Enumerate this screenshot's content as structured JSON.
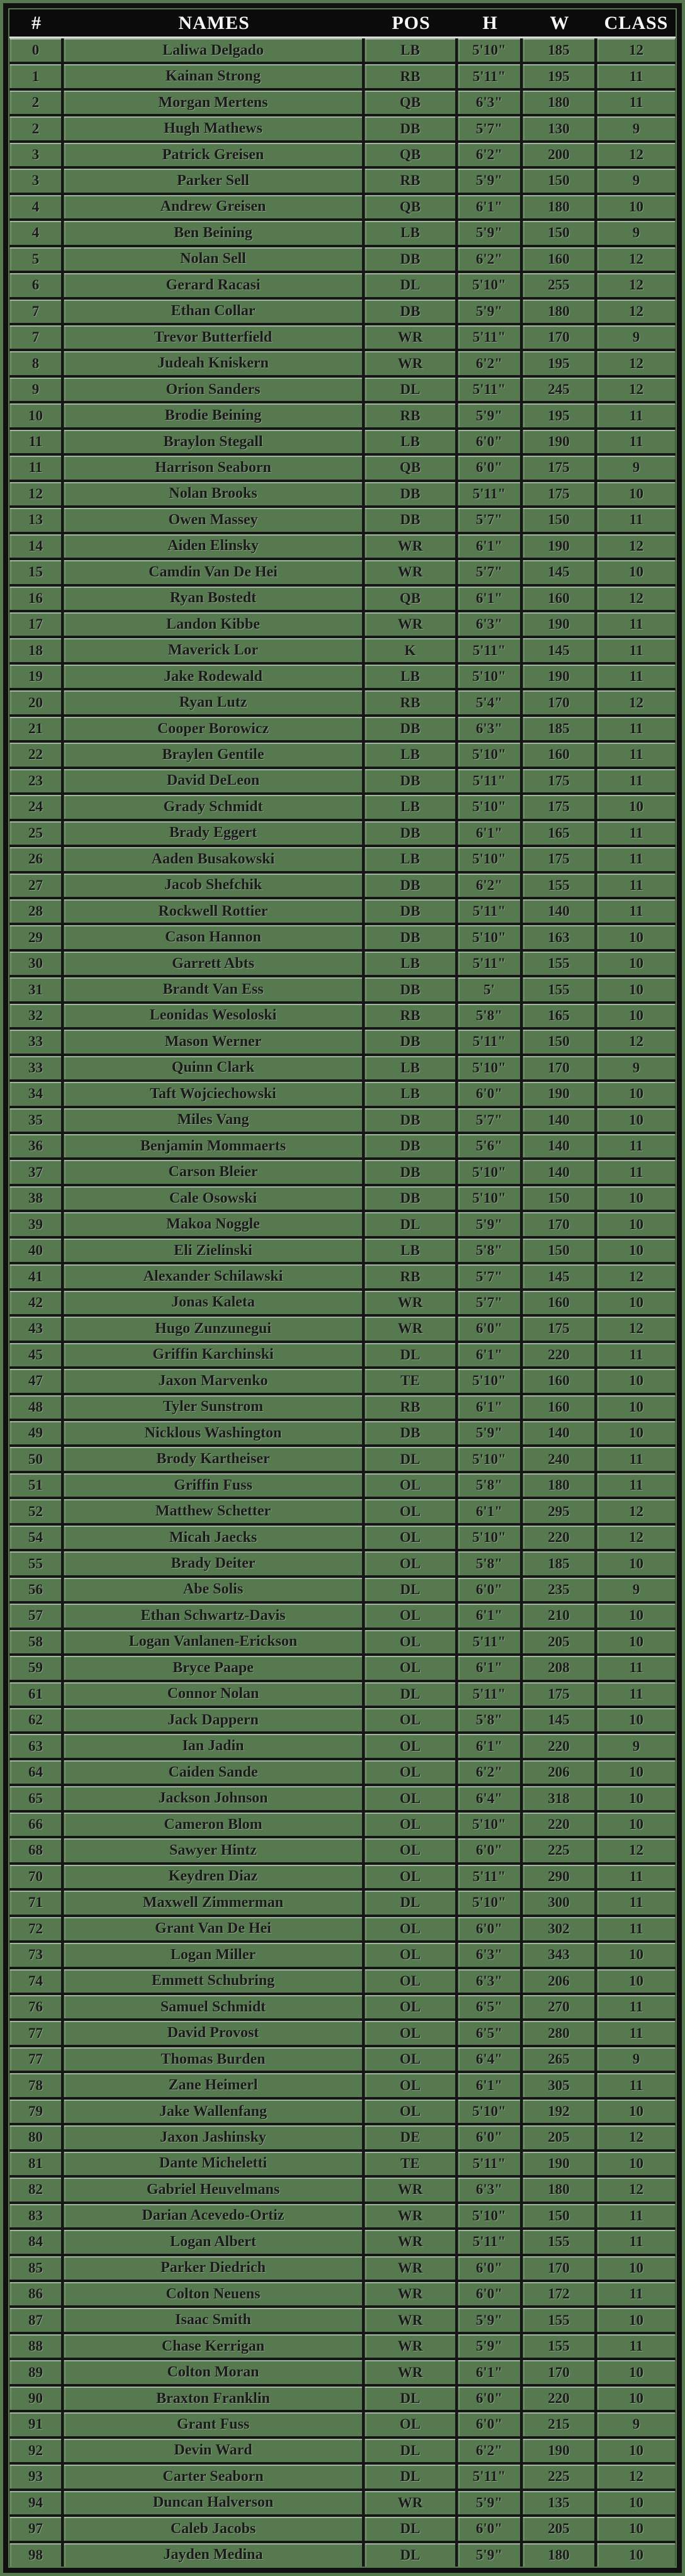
{
  "colors": {
    "background": "#57794f",
    "grid": "#161616",
    "header_bg": "#0b0b0b",
    "header_text": "#f7f7f7",
    "row_text": "#1b1b1b"
  },
  "header": {
    "columns": [
      "#",
      "NAMES",
      "POS",
      "H",
      "W",
      "CLASS"
    ]
  },
  "roster": {
    "rows": [
      [
        "0",
        "Laliwa Delgado",
        "LB",
        "5'10\"",
        "185",
        "12"
      ],
      [
        "1",
        "Kainan Strong",
        "RB",
        "5'11\"",
        "195",
        "11"
      ],
      [
        "2",
        "Morgan Mertens",
        "QB",
        "6'3\"",
        "180",
        "11"
      ],
      [
        "2",
        "Hugh Mathews",
        "DB",
        "5'7\"",
        "130",
        "9"
      ],
      [
        "3",
        "Patrick Greisen",
        "QB",
        "6'2\"",
        "200",
        "12"
      ],
      [
        "3",
        "Parker Sell",
        "RB",
        "5'9\"",
        "150",
        "9"
      ],
      [
        "4",
        "Andrew Greisen",
        "QB",
        "6'1\"",
        "180",
        "10"
      ],
      [
        "4",
        "Ben Beining",
        "LB",
        "5'9\"",
        "150",
        "9"
      ],
      [
        "5",
        "Nolan Sell",
        "DB",
        "6'2\"",
        "160",
        "12"
      ],
      [
        "6",
        "Gerard Racasi",
        "DL",
        "5'10\"",
        "255",
        "12"
      ],
      [
        "7",
        "Ethan Collar",
        "DB",
        "5'9\"",
        "180",
        "12"
      ],
      [
        "7",
        "Trevor Butterfield",
        "WR",
        "5'11\"",
        "170",
        "9"
      ],
      [
        "8",
        "Judeah Kniskern",
        "WR",
        "6'2\"",
        "195",
        "12"
      ],
      [
        "9",
        "Orion Sanders",
        "DL",
        "5'11\"",
        "245",
        "12"
      ],
      [
        "10",
        "Brodie Beining",
        "RB",
        "5'9\"",
        "195",
        "11"
      ],
      [
        "11",
        "Braylon Stegall",
        "LB",
        "6'0\"",
        "190",
        "11"
      ],
      [
        "11",
        "Harrison Seaborn",
        "QB",
        "6'0\"",
        "175",
        "9"
      ],
      [
        "12",
        "Nolan Brooks",
        "DB",
        "5'11\"",
        "175",
        "10"
      ],
      [
        "13",
        "Owen Massey",
        "DB",
        "5'7\"",
        "150",
        "11"
      ],
      [
        "14",
        "Aiden Elinsky",
        "WR",
        "6'1\"",
        "190",
        "12"
      ],
      [
        "15",
        "Camdin Van De Hei",
        "WR",
        "5'7\"",
        "145",
        "10"
      ],
      [
        "16",
        "Ryan Bostedt",
        "QB",
        "6'1\"",
        "160",
        "12"
      ],
      [
        "17",
        "Landon Kibbe",
        "WR",
        "6'3\"",
        "190",
        "11"
      ],
      [
        "18",
        "Maverick Lor",
        "K",
        "5'11\"",
        "145",
        "11"
      ],
      [
        "19",
        "Jake Rodewald",
        "LB",
        "5'10\"",
        "190",
        "11"
      ],
      [
        "20",
        "Ryan Lutz",
        "RB",
        "5'4\"",
        "170",
        "12"
      ],
      [
        "21",
        "Cooper Borowicz",
        "DB",
        "6'3\"",
        "185",
        "11"
      ],
      [
        "22",
        "Braylen Gentile",
        "LB",
        "5'10\"",
        "160",
        "11"
      ],
      [
        "23",
        "David DeLeon",
        "DB",
        "5'11\"",
        "175",
        "11"
      ],
      [
        "24",
        "Grady Schmidt",
        "LB",
        "5'10\"",
        "175",
        "10"
      ],
      [
        "25",
        "Brady Eggert",
        "DB",
        "6'1\"",
        "165",
        "11"
      ],
      [
        "26",
        "Aaden Busakowski",
        "LB",
        "5'10\"",
        "175",
        "11"
      ],
      [
        "27",
        "Jacob Shefchik",
        "DB",
        "6'2\"",
        "155",
        "11"
      ],
      [
        "28",
        "Rockwell Rottier",
        "DB",
        "5'11\"",
        "140",
        "11"
      ],
      [
        "29",
        "Cason Hannon",
        "DB",
        "5'10\"",
        "163",
        "10"
      ],
      [
        "30",
        "Garrett Abts",
        "LB",
        "5'11\"",
        "155",
        "10"
      ],
      [
        "31",
        "Brandt Van Ess",
        "DB",
        "5'",
        "155",
        "10"
      ],
      [
        "32",
        "Leonidas Wesoloski",
        "RB",
        "5'8\"",
        "165",
        "10"
      ],
      [
        "33",
        "Mason Werner",
        "DB",
        "5'11\"",
        "150",
        "12"
      ],
      [
        "33",
        "Quinn Clark",
        "LB",
        "5'10\"",
        "170",
        "9"
      ],
      [
        "34",
        "Taft Wojciechowski",
        "LB",
        "6'0\"",
        "190",
        "10"
      ],
      [
        "35",
        "Miles Vang",
        "DB",
        "5'7\"",
        "140",
        "10"
      ],
      [
        "36",
        "Benjamin Mommaerts",
        "DB",
        "5'6\"",
        "140",
        "11"
      ],
      [
        "37",
        "Carson Bleier",
        "DB",
        "5'10\"",
        "140",
        "11"
      ],
      [
        "38",
        "Cale Osowski",
        "DB",
        "5'10\"",
        "150",
        "10"
      ],
      [
        "39",
        "Makoa Noggle",
        "DL",
        "5'9\"",
        "170",
        "10"
      ],
      [
        "40",
        "Eli Zielinski",
        "LB",
        "5'8\"",
        "150",
        "10"
      ],
      [
        "41",
        "Alexander Schilawski",
        "RB",
        "5'7\"",
        "145",
        "12"
      ],
      [
        "42",
        "Jonas Kaleta",
        "WR",
        "5'7\"",
        "160",
        "10"
      ],
      [
        "43",
        "Hugo Zunzunegui",
        "WR",
        "6'0\"",
        "175",
        "12"
      ],
      [
        "45",
        "Griffin Karchinski",
        "DL",
        "6'1\"",
        "220",
        "11"
      ],
      [
        "47",
        "Jaxon Marvenko",
        "TE",
        "5'10\"",
        "160",
        "10"
      ],
      [
        "48",
        "Tyler Sunstrom",
        "RB",
        "6'1\"",
        "160",
        "10"
      ],
      [
        "49",
        "Nicklous Washington",
        "DB",
        "5'9\"",
        "140",
        "10"
      ],
      [
        "50",
        "Brody Kartheiser",
        "DL",
        "5'10\"",
        "240",
        "11"
      ],
      [
        "51",
        "Griffin Fuss",
        "OL",
        "5'8\"",
        "180",
        "11"
      ],
      [
        "52",
        "Matthew Schetter",
        "OL",
        "6'1\"",
        "295",
        "12"
      ],
      [
        "54",
        "Micah Jaecks",
        "OL",
        "5'10\"",
        "220",
        "12"
      ],
      [
        "55",
        "Brady Deiter",
        "OL",
        "5'8\"",
        "185",
        "10"
      ],
      [
        "56",
        "Abe Solis",
        "DL",
        "6'0\"",
        "235",
        "9"
      ],
      [
        "57",
        "Ethan Schwartz-Davis",
        "OL",
        "6'1\"",
        "210",
        "10"
      ],
      [
        "58",
        "Logan Vanlanen-Erickson",
        "OL",
        "5'11\"",
        "205",
        "10"
      ],
      [
        "59",
        "Bryce Paape",
        "OL",
        "6'1\"",
        "208",
        "11"
      ],
      [
        "61",
        "Connor Nolan",
        "DL",
        "5'11\"",
        "175",
        "11"
      ],
      [
        "62",
        "Jack Dappern",
        "OL",
        "5'8\"",
        "145",
        "10"
      ],
      [
        "63",
        "Ian Jadin",
        "OL",
        "6'1\"",
        "220",
        "9"
      ],
      [
        "64",
        "Caiden Sande",
        "OL",
        "6'2\"",
        "206",
        "10"
      ],
      [
        "65",
        "Jackson Johnson",
        "OL",
        "6'4\"",
        "318",
        "10"
      ],
      [
        "66",
        "Cameron Blom",
        "OL",
        "5'10\"",
        "220",
        "10"
      ],
      [
        "68",
        "Sawyer Hintz",
        "OL",
        "6'0\"",
        "225",
        "12"
      ],
      [
        "70",
        "Keydren Diaz",
        "OL",
        "5'11\"",
        "290",
        "11"
      ],
      [
        "71",
        "Maxwell Zimmerman",
        "DL",
        "5'10\"",
        "300",
        "11"
      ],
      [
        "72",
        "Grant Van De Hei",
        "OL",
        "6'0\"",
        "302",
        "11"
      ],
      [
        "73",
        "Logan Miller",
        "OL",
        "6'3\"",
        "343",
        "10"
      ],
      [
        "74",
        "Emmett Schubring",
        "OL",
        "6'3\"",
        "206",
        "10"
      ],
      [
        "76",
        "Samuel Schmidt",
        "OL",
        "6'5\"",
        "270",
        "11"
      ],
      [
        "77",
        "David Provost",
        "OL",
        "6'5\"",
        "280",
        "11"
      ],
      [
        "77",
        "Thomas Burden",
        "OL",
        "6'4\"",
        "265",
        "9"
      ],
      [
        "78",
        "Zane Heimerl",
        "OL",
        "6'1\"",
        "305",
        "11"
      ],
      [
        "79",
        "Jake Wallenfang",
        "OL",
        "5'10\"",
        "192",
        "10"
      ],
      [
        "80",
        "Jaxon Jashinsky",
        "DE",
        "6'0\"",
        "205",
        "12"
      ],
      [
        "81",
        "Dante Micheletti",
        "TE",
        "5'11\"",
        "190",
        "10"
      ],
      [
        "82",
        "Gabriel Heuvelmans",
        "WR",
        "6'3\"",
        "180",
        "12"
      ],
      [
        "83",
        "Darian Acevedo-Ortiz",
        "WR",
        "5'10\"",
        "150",
        "11"
      ],
      [
        "84",
        "Logan Albert",
        "WR",
        "5'11\"",
        "155",
        "11"
      ],
      [
        "85",
        "Parker Diedrich",
        "WR",
        "6'0\"",
        "170",
        "10"
      ],
      [
        "86",
        "Colton Neuens",
        "WR",
        "6'0\"",
        "172",
        "11"
      ],
      [
        "87",
        "Isaac Smith",
        "WR",
        "5'9\"",
        "155",
        "10"
      ],
      [
        "88",
        "Chase Kerrigan",
        "WR",
        "5'9\"",
        "155",
        "11"
      ],
      [
        "89",
        "Colton Moran",
        "WR",
        "6'1\"",
        "170",
        "10"
      ],
      [
        "90",
        "Braxton Franklin",
        "DL",
        "6'0\"",
        "220",
        "10"
      ],
      [
        "91",
        "Grant Fuss",
        "OL",
        "6'0\"",
        "215",
        "9"
      ],
      [
        "92",
        "Devin Ward",
        "DL",
        "6'2\"",
        "190",
        "10"
      ],
      [
        "93",
        "Carter Seaborn",
        "DL",
        "5'11\"",
        "225",
        "12"
      ],
      [
        "94",
        "Duncan Halverson",
        "WR",
        "5'9\"",
        "135",
        "10"
      ],
      [
        "97",
        "Caleb Jacobs",
        "DL",
        "6'0\"",
        "205",
        "10"
      ],
      [
        "98",
        "Jayden Medina",
        "DL",
        "5'9\"",
        "180",
        "10"
      ]
    ]
  }
}
